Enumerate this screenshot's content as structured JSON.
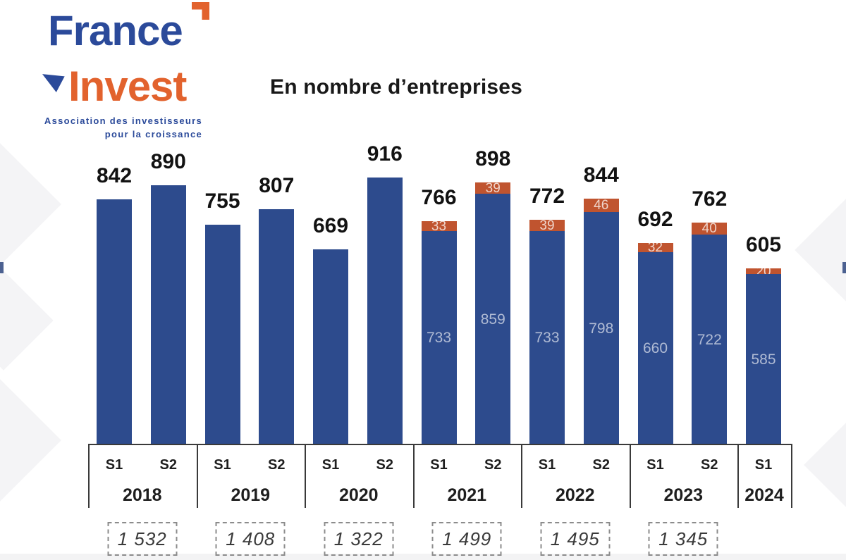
{
  "logo": {
    "word1": "France",
    "word2": "Invest",
    "tagline_line1": "Association des investisseurs",
    "tagline_line2": "pour la croissance",
    "colors": {
      "blue": "#2b4a9a",
      "orange": "#e2622d"
    }
  },
  "chart_data": {
    "type": "bar",
    "stacked": true,
    "title": "En nombre d’entreprises",
    "xlabel": "",
    "ylabel": "",
    "ylim": [
      0,
      916
    ],
    "grid": false,
    "legend": null,
    "colors": {
      "blue": "#2d4b8d",
      "orange": "#c0542f"
    },
    "groups": [
      {
        "year": "2018",
        "semesters": [
          "S1",
          "S2"
        ],
        "year_total": "1 532"
      },
      {
        "year": "2019",
        "semesters": [
          "S1",
          "S2"
        ],
        "year_total": "1 408"
      },
      {
        "year": "2020",
        "semesters": [
          "S1",
          "S2"
        ],
        "year_total": "1 322"
      },
      {
        "year": "2021",
        "semesters": [
          "S1",
          "S2"
        ],
        "year_total": "1 499"
      },
      {
        "year": "2022",
        "semesters": [
          "S1",
          "S2"
        ],
        "year_total": "1 495"
      },
      {
        "year": "2023",
        "semesters": [
          "S1",
          "S2"
        ],
        "year_total": "1 345"
      },
      {
        "year": "2024",
        "semesters": [
          "S1"
        ],
        "year_total": null
      }
    ],
    "bars": [
      {
        "year": "2018",
        "sem": "S1",
        "total": 842,
        "blue": 842,
        "orange": null
      },
      {
        "year": "2018",
        "sem": "S2",
        "total": 890,
        "blue": 890,
        "orange": null
      },
      {
        "year": "2019",
        "sem": "S1",
        "total": 755,
        "blue": 755,
        "orange": null
      },
      {
        "year": "2019",
        "sem": "S2",
        "total": 807,
        "blue": 807,
        "orange": null
      },
      {
        "year": "2020",
        "sem": "S1",
        "total": 669,
        "blue": 669,
        "orange": null
      },
      {
        "year": "2020",
        "sem": "S2",
        "total": 916,
        "blue": 916,
        "orange": null
      },
      {
        "year": "2021",
        "sem": "S1",
        "total": 766,
        "blue": 733,
        "orange": 33
      },
      {
        "year": "2021",
        "sem": "S2",
        "total": 898,
        "blue": 859,
        "orange": 39
      },
      {
        "year": "2022",
        "sem": "S1",
        "total": 772,
        "blue": 733,
        "orange": 39
      },
      {
        "year": "2022",
        "sem": "S2",
        "total": 844,
        "blue": 798,
        "orange": 46
      },
      {
        "year": "2023",
        "sem": "S1",
        "total": 692,
        "blue": 660,
        "orange": 32
      },
      {
        "year": "2023",
        "sem": "S2",
        "total": 762,
        "blue": 722,
        "orange": 40
      },
      {
        "year": "2024",
        "sem": "S1",
        "total": 605,
        "blue": 585,
        "orange": 20
      }
    ]
  }
}
